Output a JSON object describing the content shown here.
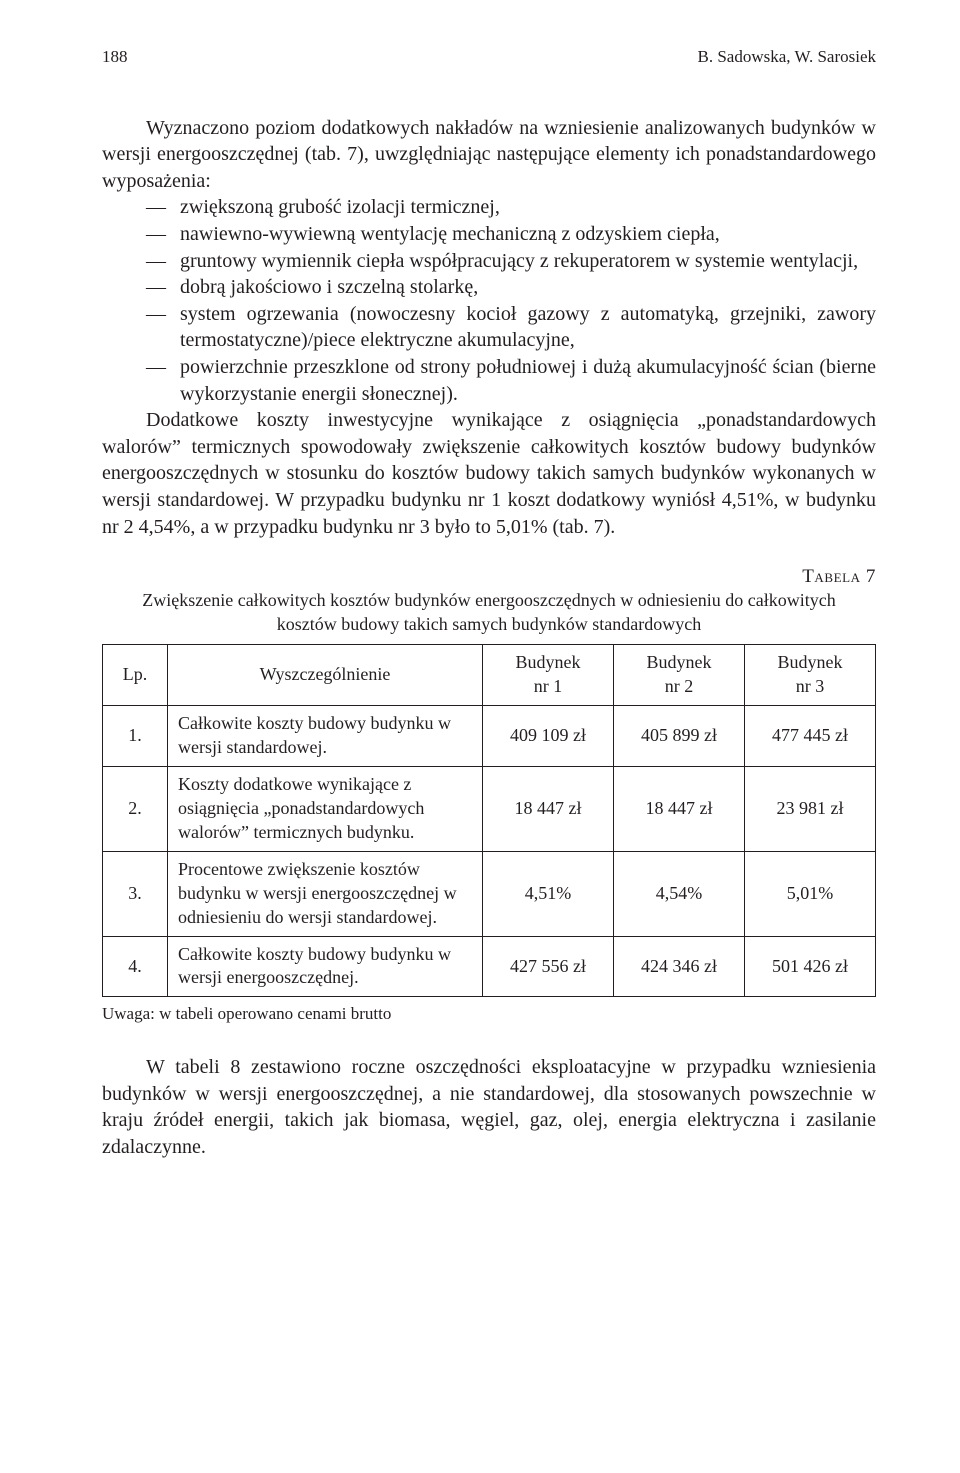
{
  "header": {
    "page_number": "188",
    "authors": "B. Sadowska, W. Sarosiek"
  },
  "paragraphs": {
    "p1": "Wyznaczono poziom dodatkowych nakładów na wzniesienie analizowanych budynków w wersji energooszczędnej (tab. 7), uwzględniając następujące elementy ich ponadstandardowego wyposażenia:",
    "bullets": [
      "zwiększoną grubość izolacji termicznej,",
      "nawiewno-wywiewną wentylację mechaniczną z odzyskiem ciepła,",
      "gruntowy wymiennik ciepła współpracujący z rekuperatorem w systemie wentylacji,",
      "dobrą jakościowo i szczelną stolarkę,",
      "system ogrzewania (nowoczesny kocioł gazowy z automatyką, grzejniki, zawory termostatyczne)/piece elektryczne akumulacyjne,",
      "powierzchnie przeszklone od strony południowej i dużą akumulacyjność ścian (bierne wykorzystanie energii słonecznej)."
    ],
    "p2": "Dodatkowe koszty inwestycyjne wynikające z osiągnięcia „ponadstandardowych walorów” termicznych spowodowały zwiększenie całkowitych kosztów budowy budynków energooszczędnych w stosunku do kosztów budowy takich samych budynków wykonanych w wersji standardowej. W przypadku budynku nr 1 koszt dodatkowy wyniósł 4,51%, w budynku nr 2 4,54%, a w przypadku budynku nr 3 było to 5,01% (tab. 7).",
    "p3": "W tabeli 8 zestawiono roczne oszczędności eksploatacyjne w przypadku wzniesienia budynków w wersji energooszczędnej, a nie standardowej, dla stosowanych powszechnie w kraju źródeł energii, takich jak biomasa, węgiel, gaz, olej, energia elektryczna i zasilanie zdalaczynne."
  },
  "table": {
    "type": "table",
    "label": "Tabela 7",
    "caption": "Zwiększenie całkowitych kosztów budynków energooszczędnych w odniesieniu do całkowitych kosztów budowy takich samych budynków standardowych",
    "columns": {
      "lp": "Lp.",
      "desc": "Wyszczególnienie",
      "b1_top": "Budynek",
      "b1_bot": "nr 1",
      "b2_top": "Budynek",
      "b2_bot": "nr 2",
      "b3_top": "Budynek",
      "b3_bot": "nr 3"
    },
    "rows": [
      {
        "lp": "1.",
        "desc": "Całkowite koszty budowy budynku w wersji standardowej.",
        "b1": "409 109 zł",
        "b2": "405 899 zł",
        "b3": "477 445 zł"
      },
      {
        "lp": "2.",
        "desc": "Koszty dodatkowe wynikające z osiągnięcia „ponadstandardowych walorów” termicznych budynku.",
        "b1": "18 447 zł",
        "b2": "18 447 zł",
        "b3": "23 981 zł"
      },
      {
        "lp": "3.",
        "desc": "Procentowe zwiększenie kosztów budynku w wersji energooszczędnej w odniesieniu do wersji standardowej.",
        "b1": "4,51%",
        "b2": "4,54%",
        "b3": "5,01%"
      },
      {
        "lp": "4.",
        "desc": "Całkowite koszty budowy budynku w wersji energooszczędnej.",
        "b1": "427 556 zł",
        "b2": "424 346 zł",
        "b3": "501 426 zł"
      }
    ],
    "note": "Uwaga: w tabeli operowano cenami brutto"
  }
}
